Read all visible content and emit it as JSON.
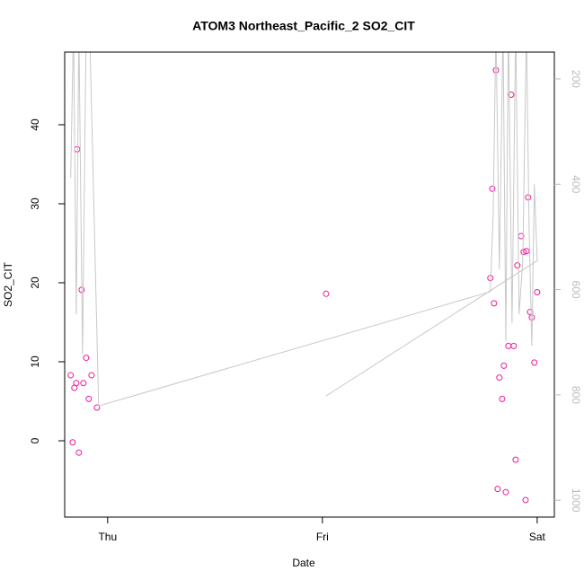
{
  "chart_data": {
    "type": "scatter",
    "title": "ATOM3 Northeast_Pacific_2 SO2_CIT",
    "xlabel": "Date",
    "ylabel": "SO2_CIT",
    "xlim": [
      -0.2,
      2.08
    ],
    "xticks": [
      {
        "value": 0,
        "label": "Thu"
      },
      {
        "value": 1,
        "label": "Fri"
      },
      {
        "value": 2,
        "label": "Sat"
      }
    ],
    "ylim": [
      -9.66,
      49.2
    ],
    "yticks": [
      0,
      10,
      20,
      30,
      40
    ],
    "y2lim": [
      1032,
      149
    ],
    "y2ticks": [
      200,
      400,
      600,
      800,
      1000
    ],
    "series": [
      {
        "color": "#f0189b",
        "x": [
          -0.172,
          -0.163,
          -0.155,
          -0.146,
          -0.142,
          -0.134,
          -0.121,
          -0.113,
          -0.1,
          -0.088,
          -0.075,
          -0.05,
          1.017,
          1.782,
          1.791,
          1.799,
          1.808,
          1.816,
          1.824,
          1.837,
          1.845,
          1.854,
          1.866,
          1.879,
          1.891,
          1.9,
          1.908,
          1.925,
          1.937,
          1.95,
          1.946,
          1.958,
          1.967,
          1.975,
          1.987,
          2.0
        ],
        "values": [
          8.3,
          -0.2,
          6.7,
          7.3,
          36.9,
          -1.5,
          19.1,
          7.3,
          10.5,
          5.3,
          8.3,
          4.2,
          18.6,
          20.6,
          31.9,
          17.4,
          46.9,
          -6.1,
          8.0,
          5.3,
          9.5,
          -6.5,
          12.0,
          43.8,
          12.0,
          -2.4,
          22.2,
          25.9,
          23.9,
          24.0,
          -7.5,
          30.8,
          16.3,
          15.6,
          9.9,
          18.8
        ]
      },
      {
        "type": "line",
        "color": "#c8c8c8",
        "axis": "y2",
        "x": [
          -0.172,
          -0.159,
          -0.146,
          -0.134,
          -0.117,
          -0.1,
          -0.084,
          -0.042,
          1.782,
          1.795,
          1.808,
          1.824,
          1.841,
          1.854,
          1.866,
          1.883,
          1.9,
          1.916,
          1.933,
          1.95,
          1.962,
          1.975,
          1.987,
          2.0,
          1.017
        ],
        "values": [
          388,
          100,
          647,
          100,
          724,
          100,
          100,
          821,
          604,
          459,
          100,
          562,
          100,
          698,
          100,
          664,
          100,
          647,
          545,
          100,
          476,
          707,
          400,
          545,
          802
        ]
      }
    ]
  }
}
